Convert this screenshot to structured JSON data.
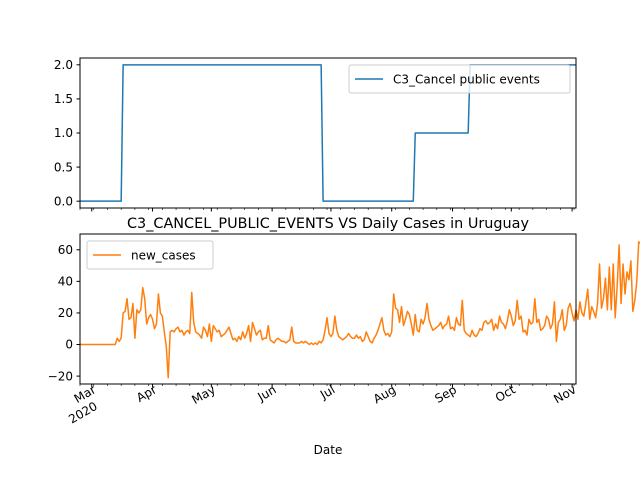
{
  "chart_data": [
    {
      "type": "line",
      "title": "",
      "xlabel": "",
      "ylabel": "",
      "ylim": [
        -0.1,
        2.1
      ],
      "yticks": [
        0.0,
        0.5,
        1.0,
        1.5,
        2.0
      ],
      "ytick_labels": [
        "0.0",
        "0.5",
        "1.0",
        "1.5",
        "2.0"
      ],
      "legend_position": "top-right",
      "grid": false,
      "series": [
        {
          "name": "C3_Cancel public events",
          "color": "#1f77b4",
          "points": [
            [
              "2020-02-24",
              0
            ],
            [
              "2020-03-16",
              0
            ],
            [
              "2020-03-17",
              2
            ],
            [
              "2020-06-26",
              2
            ],
            [
              "2020-06-27",
              0
            ],
            [
              "2020-08-12",
              0
            ],
            [
              "2020-08-13",
              1
            ],
            [
              "2020-09-09",
              1
            ],
            [
              "2020-09-10",
              2
            ],
            [
              "2020-11-03",
              2
            ]
          ]
        }
      ]
    },
    {
      "type": "line",
      "title": "C3_CANCEL_PUBLIC_EVENTS VS Daily Cases in Uruguay",
      "xlabel": "Date",
      "ylabel": "",
      "ylim": [
        -25,
        70
      ],
      "yticks": [
        -20,
        0,
        20,
        40,
        60
      ],
      "ytick_labels": [
        "−20",
        "0",
        "20",
        "40",
        "60"
      ],
      "legend_position": "top-left",
      "grid": false,
      "x_range": [
        "2020-02-24",
        "2020-11-03"
      ],
      "x_ticks": [
        {
          "date": "2020-03-01",
          "label": "Mar",
          "sublabel": "2020"
        },
        {
          "date": "2020-04-01",
          "label": "Apr"
        },
        {
          "date": "2020-05-01",
          "label": "May"
        },
        {
          "date": "2020-06-01",
          "label": "Jun"
        },
        {
          "date": "2020-07-01",
          "label": "Jul"
        },
        {
          "date": "2020-08-01",
          "label": "Aug"
        },
        {
          "date": "2020-09-01",
          "label": "Sep"
        },
        {
          "date": "2020-10-01",
          "label": "Oct"
        },
        {
          "date": "2020-11-01",
          "label": "Nov"
        }
      ],
      "series": [
        {
          "name": "new_cases",
          "color": "#ff7f0e",
          "start_date": "2020-02-24",
          "values": [
            0,
            0,
            0,
            0,
            0,
            0,
            0,
            0,
            0,
            0,
            0,
            0,
            0,
            0,
            0,
            0,
            0,
            0,
            0,
            4,
            2,
            4,
            20,
            21,
            29,
            16,
            17,
            26,
            4,
            22,
            20,
            22,
            36,
            29,
            13,
            17,
            19,
            16,
            10,
            13,
            32,
            20,
            18,
            8,
            -1,
            -21,
            8,
            9,
            8,
            10,
            11,
            8,
            9,
            6,
            8,
            9,
            7,
            33,
            14,
            8,
            7,
            6,
            4,
            11,
            9,
            5,
            13,
            2,
            12,
            10,
            8,
            9,
            5,
            6,
            7,
            9,
            11,
            7,
            3,
            4,
            2,
            5,
            3,
            8,
            4,
            7,
            12,
            2,
            14,
            10,
            6,
            8,
            9,
            3,
            4,
            4,
            12,
            3,
            2,
            1,
            3,
            4,
            3,
            2,
            2,
            1,
            2,
            3,
            11,
            2,
            1,
            1,
            1,
            2,
            1,
            2,
            1,
            0,
            1,
            0,
            1,
            0,
            2,
            1,
            3,
            9,
            17,
            7,
            5,
            7,
            18,
            9,
            5,
            4,
            3,
            4,
            5,
            7,
            5,
            4,
            4,
            6,
            4,
            5,
            2,
            3,
            8,
            5,
            2,
            1,
            4,
            6,
            9,
            13,
            17,
            9,
            6,
            7,
            5,
            8,
            32,
            23,
            22,
            14,
            24,
            12,
            16,
            21,
            19,
            13,
            6,
            19,
            9,
            8,
            16,
            13,
            17,
            26,
            16,
            12,
            9,
            10,
            11,
            12,
            14,
            10,
            12,
            13,
            18,
            10,
            11,
            9,
            17,
            13,
            12,
            28,
            9,
            7,
            6,
            5,
            9,
            6,
            5,
            7,
            10,
            9,
            14,
            15,
            13,
            14,
            16,
            9,
            13,
            10,
            18,
            14,
            13,
            10,
            15,
            22,
            18,
            12,
            15,
            28,
            16,
            18,
            8,
            9,
            6,
            16,
            13,
            14,
            29,
            14,
            16,
            9,
            10,
            12,
            18,
            16,
            10,
            13,
            27,
            2,
            14,
            16,
            22,
            9,
            12,
            23,
            26,
            20,
            15,
            22,
            16,
            27,
            20,
            18,
            26,
            35,
            16,
            24,
            21,
            17,
            26,
            51,
            23,
            29,
            42,
            22,
            49,
            22,
            51,
            17,
            37,
            63,
            26,
            51,
            32,
            46,
            41,
            53,
            21,
            28,
            40,
            65,
            64,
            38,
            42,
            25
          ]
        }
      ]
    }
  ]
}
